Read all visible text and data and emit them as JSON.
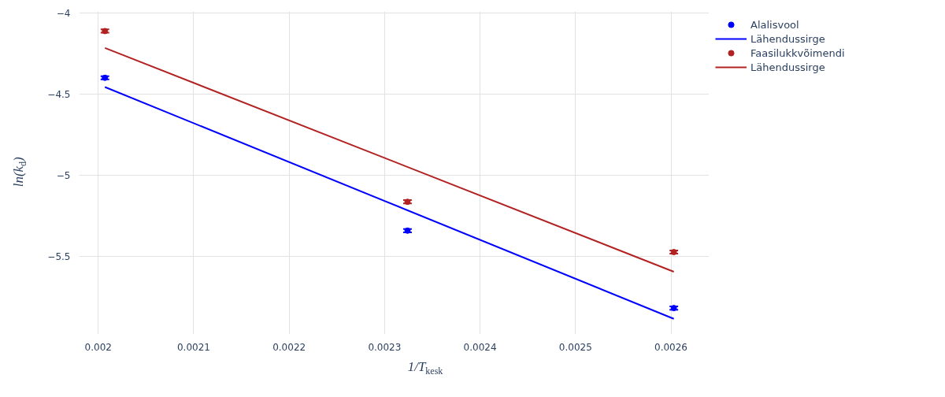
{
  "chart_data": {
    "type": "scatter",
    "xlabel": "1/T$_{kesk}$",
    "ylabel": "ln(k$_{d}$)",
    "xlim": [
      0.00198,
      0.00264
    ],
    "ylim": [
      -5.98,
      -3.99
    ],
    "xticks": [
      0.002,
      0.0021,
      0.0022,
      0.0023,
      0.0024,
      0.0025,
      0.0026
    ],
    "yticks": [
      -5.5,
      -5,
      -4.5,
      -4
    ],
    "grid": true,
    "legend": "top right",
    "series": [
      {
        "name": "Alalisvool",
        "type": "scatter",
        "marker": "circle",
        "color": "#0000ff",
        "x": [
          0.002007,
          0.002324,
          0.002603
        ],
        "values": [
          -4.399,
          -5.341,
          -5.818
        ],
        "errors": [
          0.01,
          0.01,
          0.01
        ]
      },
      {
        "name": "Lähendussirge",
        "type": "line",
        "color": "#0000ff",
        "x": [
          0.002007,
          0.002603
        ],
        "values": [
          -4.456,
          -5.884
        ]
      },
      {
        "name": "Faasilukkvõimendi",
        "type": "scatter",
        "marker": "circle",
        "color": "#b22222",
        "x": [
          0.002007,
          0.002324,
          0.002603
        ],
        "values": [
          -4.111,
          -5.163,
          -5.473
        ],
        "errors": [
          0.01,
          0.01,
          0.01
        ]
      },
      {
        "name": "Lähendussirge",
        "type": "line",
        "color": "#b22222",
        "x": [
          0.002007,
          0.002603
        ],
        "values": [
          -4.215,
          -5.594
        ]
      }
    ]
  }
}
